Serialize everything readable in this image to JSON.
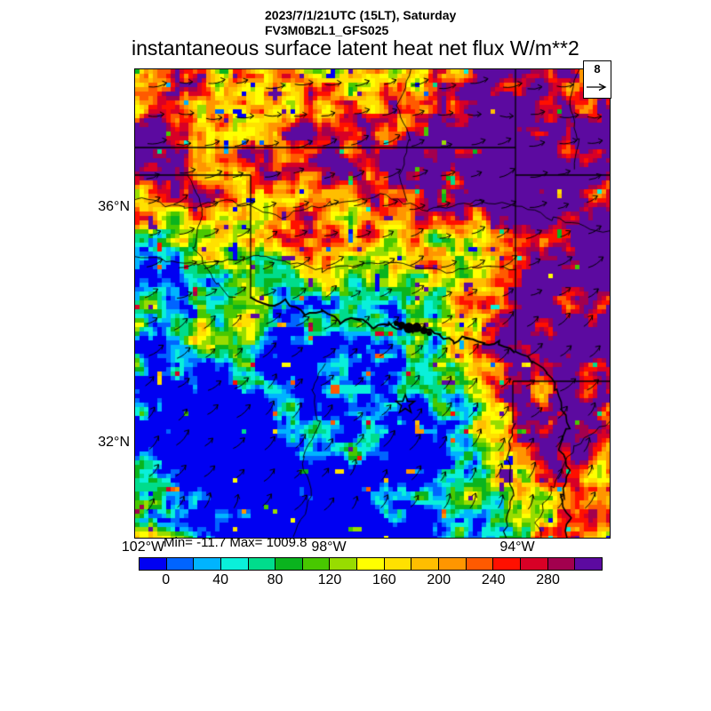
{
  "header": {
    "datetime": "2023/7/1/21UTC (15LT), Saturday",
    "model": "FV3M0B2L1_GFS025",
    "variable": "instantaneous surface latent heat net flux W/m**2"
  },
  "stats": {
    "min_max_text": "Min= -11.7 Max= 1009.8"
  },
  "map": {
    "vector_ref_label": "8"
  },
  "chart_data": {
    "type": "heatmap",
    "title": "instantaneous surface latent heat net flux W/m**2",
    "subtitle": [
      "2023/7/1/21UTC (15LT), Saturday",
      "FV3M0B2L1_GFS025"
    ],
    "units": "W/m**2",
    "field_stats": {
      "min": -11.7,
      "max": 1009.8
    },
    "wind_vector_reference": 8,
    "axes": {
      "lon_west_to_east_degW": [
        102.2,
        92.0
      ],
      "lat_south_to_north_degN": [
        30.35,
        38.3
      ],
      "xticks": [
        {
          "label": "102°W",
          "lon_degW": 102
        },
        {
          "label": "98°W",
          "lon_degW": 98
        },
        {
          "label": "94°W",
          "lon_degW": 94
        }
      ],
      "yticks": [
        {
          "label": "36°N",
          "lat_degN": 36
        },
        {
          "label": "32°N",
          "lat_degN": 32
        }
      ]
    },
    "colorbar": {
      "cell_interval": 20,
      "level_boundaries": [
        0,
        20,
        40,
        60,
        80,
        100,
        120,
        140,
        160,
        180,
        200,
        220,
        240,
        260,
        280,
        300
      ],
      "tick_labels": [
        "0",
        "40",
        "80",
        "120",
        "160",
        "200",
        "240",
        "280"
      ],
      "tick_boundary_indices": [
        1,
        3,
        5,
        7,
        9,
        11,
        13,
        15
      ],
      "colors": [
        "#0000f2",
        "#0064ff",
        "#00b4ff",
        "#0af0da",
        "#00dc8c",
        "#0ab41e",
        "#48c800",
        "#98dc00",
        "#ffff00",
        "#ffe100",
        "#ffbe00",
        "#ff9600",
        "#ff5a00",
        "#ff1000",
        "#d80026",
        "#a2004e",
        "#5c0aa0"
      ]
    },
    "overlays": [
      "wind vector arrows",
      "state borders",
      "rivers",
      "lake",
      "star location marker"
    ]
  }
}
